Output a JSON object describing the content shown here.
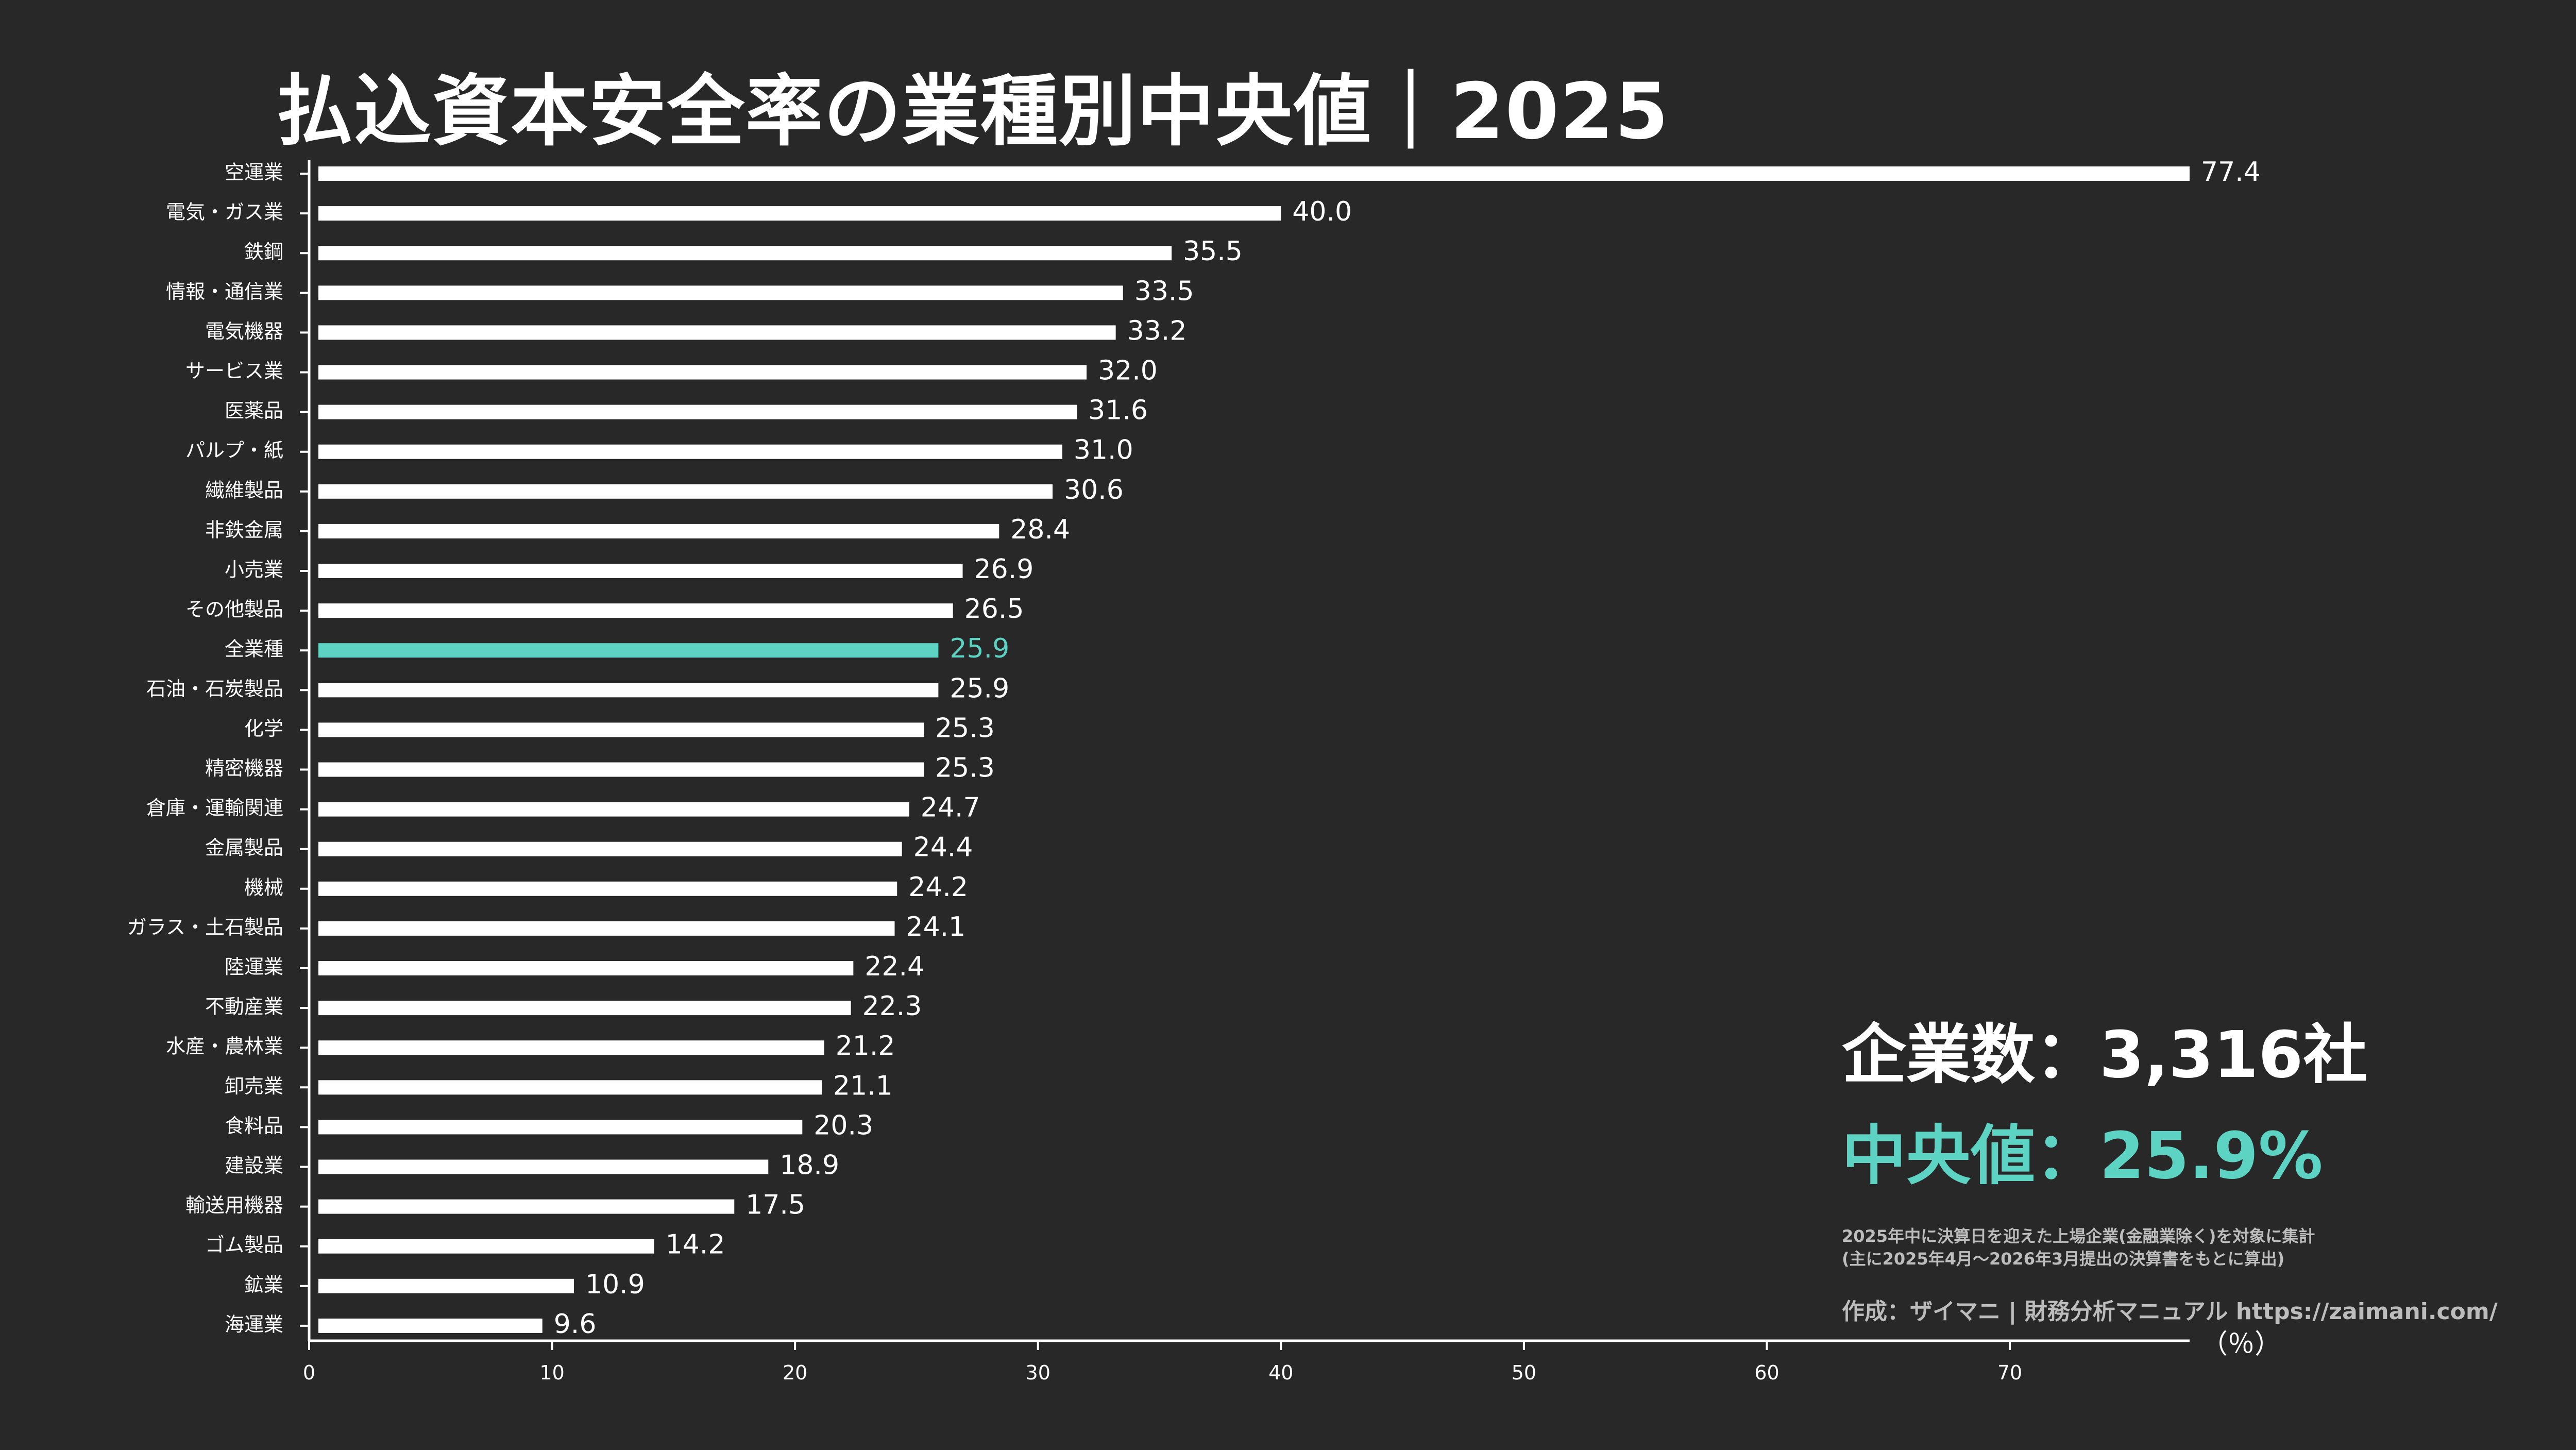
{
  "title": "払込資本安全率の業種別中央値｜2025",
  "summary": {
    "company_count": "企業数：3,316社",
    "median": "中央値：25.9%",
    "note_line1": "2025年中に決算日を迎えた上場企業(金融業除く)を対象に集計",
    "note_line2": "(主に2025年4月〜2026年3月提出の決算書をもとに算出)",
    "credit": "作成：ザイマニ | 財務分析マニュアル https://zaimani.com/"
  },
  "colors": {
    "background": "#282828",
    "bar": "#ffffff",
    "highlight": "#5dd3c3",
    "text": "#ffffff"
  },
  "chart_data": {
    "type": "bar",
    "orientation": "horizontal",
    "title": "払込資本安全率の業種別中央値｜2025",
    "xlabel": "（％）",
    "xlim": [
      0,
      77.4
    ],
    "xticks": [
      0,
      10,
      20,
      30,
      40,
      50,
      60,
      70
    ],
    "highlight": "全業種",
    "categories": [
      "空運業",
      "電気・ガス業",
      "鉄鋼",
      "情報・通信業",
      "電気機器",
      "サービス業",
      "医薬品",
      "パルプ・紙",
      "繊維製品",
      "非鉄金属",
      "小売業",
      "その他製品",
      "全業種",
      "石油・石炭製品",
      "化学",
      "精密機器",
      "倉庫・運輸関連",
      "金属製品",
      "機械",
      "ガラス・土石製品",
      "陸運業",
      "不動産業",
      "水産・農林業",
      "卸売業",
      "食料品",
      "建設業",
      "輸送用機器",
      "ゴム製品",
      "鉱業",
      "海運業"
    ],
    "values": [
      77.4,
      40.0,
      35.5,
      33.5,
      33.2,
      32.0,
      31.6,
      31.0,
      30.6,
      28.4,
      26.9,
      26.5,
      25.9,
      25.9,
      25.3,
      25.3,
      24.7,
      24.4,
      24.2,
      24.1,
      22.4,
      22.3,
      21.2,
      21.1,
      20.3,
      18.9,
      17.5,
      14.2,
      10.9,
      9.6
    ],
    "value_labels": [
      "77.4",
      "40.0",
      "35.5",
      "33.5",
      "33.2",
      "32.0",
      "31.6",
      "31.0",
      "30.6",
      "28.4",
      "26.9",
      "26.5",
      "25.9",
      "25.9",
      "25.3",
      "25.3",
      "24.7",
      "24.4",
      "24.2",
      "24.1",
      "22.4",
      "22.3",
      "21.2",
      "21.1",
      "20.3",
      "18.9",
      "17.5",
      "14.2",
      "10.9",
      "9.6"
    ]
  }
}
